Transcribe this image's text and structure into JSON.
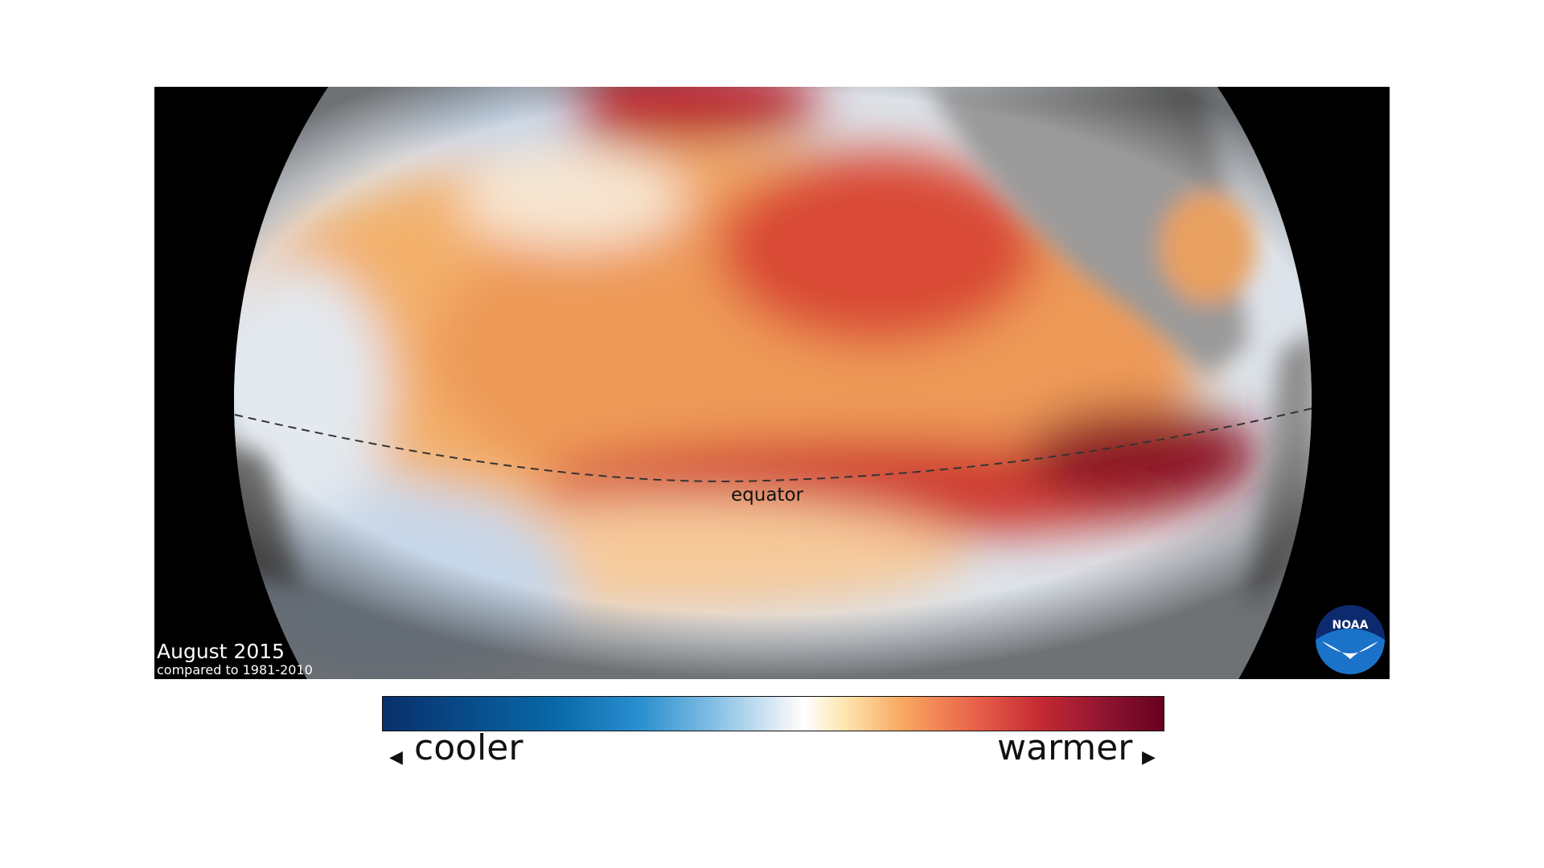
{
  "map": {
    "title": "August 2015",
    "subtitle": "compared to 1981-2010",
    "equator_label": "equator",
    "logo_text": "NOAA"
  },
  "legend": {
    "cooler_label": "cooler",
    "warmer_label": "warmer",
    "left_arrow": "◀",
    "right_arrow": "▶",
    "colors": [
      "#08306b",
      "#0868a8",
      "#7fbde3",
      "#ffffff",
      "#f8a45e",
      "#c62a33",
      "#67001f"
    ]
  }
}
